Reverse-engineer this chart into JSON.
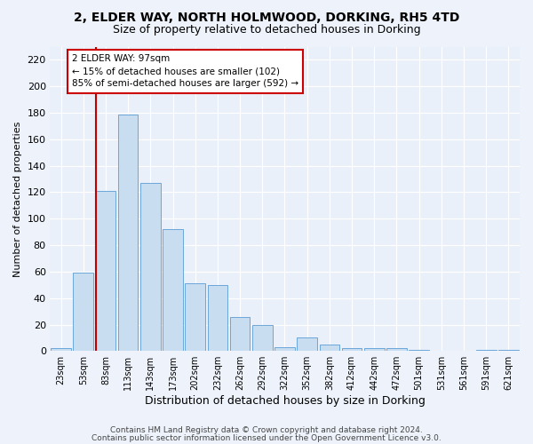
{
  "title1": "2, ELDER WAY, NORTH HOLMWOOD, DORKING, RH5 4TD",
  "title2": "Size of property relative to detached houses in Dorking",
  "xlabel": "Distribution of detached houses by size in Dorking",
  "ylabel": "Number of detached properties",
  "categories": [
    "23sqm",
    "53sqm",
    "83sqm",
    "113sqm",
    "143sqm",
    "173sqm",
    "202sqm",
    "232sqm",
    "262sqm",
    "292sqm",
    "322sqm",
    "352sqm",
    "382sqm",
    "412sqm",
    "442sqm",
    "472sqm",
    "501sqm",
    "531sqm",
    "561sqm",
    "591sqm",
    "621sqm"
  ],
  "values": [
    2,
    59,
    121,
    179,
    127,
    92,
    51,
    50,
    26,
    20,
    3,
    10,
    5,
    2,
    2,
    2,
    1,
    0,
    0,
    1,
    1
  ],
  "bar_color": "#c9ddf0",
  "bar_edge_color": "#5a9bd5",
  "vline_x_index": 2,
  "vline_color": "#c00000",
  "annotation_text": "2 ELDER WAY: 97sqm\n← 15% of detached houses are smaller (102)\n85% of semi-detached houses are larger (592) →",
  "annotation_box_color": "#cc0000",
  "ylim": [
    0,
    230
  ],
  "yticks": [
    0,
    20,
    40,
    60,
    80,
    100,
    120,
    140,
    160,
    180,
    200,
    220
  ],
  "fig_bg_color": "#eef3fb",
  "ax_bg_color": "#eaf0f9",
  "grid_color": "#ffffff",
  "footer1": "Contains HM Land Registry data © Crown copyright and database right 2024.",
  "footer2": "Contains public sector information licensed under the Open Government Licence v3.0.",
  "title1_fontsize": 10,
  "title2_fontsize": 9
}
